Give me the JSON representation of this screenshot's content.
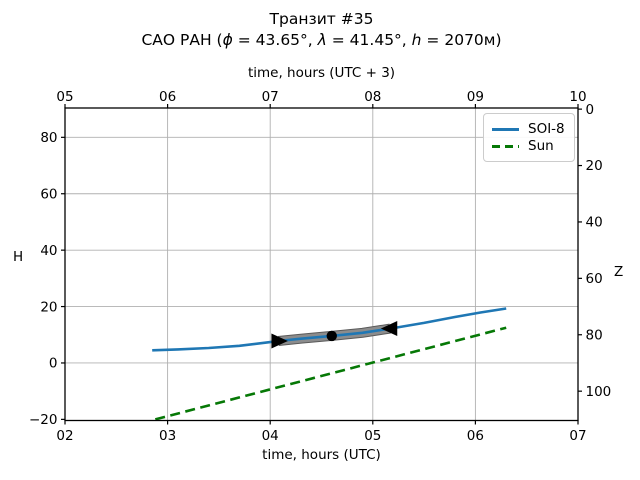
{
  "title": "Транзит #35",
  "subtitle": {
    "prefix": "САО РАН (",
    "phi_symbol": "ϕ",
    "phi_value": " = 43.65°, ",
    "lambda_symbol": "λ",
    "lambda_value": " = 41.45°, ",
    "h_symbol": "h",
    "h_value": " = 2070м)"
  },
  "chart_data": {
    "type": "line",
    "title": "Транзит #35",
    "subtitle": "САО РАН (ϕ = 43.65°, λ = 41.45°, h = 2070м)",
    "grid": true,
    "axes": {
      "x_bottom": {
        "label": "time, hours (UTC)",
        "min": 2,
        "max": 7,
        "ticks": [
          {
            "v": 2,
            "label": "02"
          },
          {
            "v": 3,
            "label": "03"
          },
          {
            "v": 4,
            "label": "04"
          },
          {
            "v": 5,
            "label": "05"
          },
          {
            "v": 6,
            "label": "06"
          },
          {
            "v": 7,
            "label": "07"
          }
        ]
      },
      "x_top": {
        "label": "time, hours (UTC + 3)",
        "min": 5,
        "max": 10,
        "ticks": [
          {
            "v": 2,
            "label": "05"
          },
          {
            "v": 3,
            "label": "06"
          },
          {
            "v": 4,
            "label": "07"
          },
          {
            "v": 5,
            "label": "08"
          },
          {
            "v": 6,
            "label": "09"
          },
          {
            "v": 7,
            "label": "10"
          }
        ]
      },
      "y_left": {
        "label": "H",
        "min": -20.4,
        "max": 90.4,
        "ticks": [
          {
            "v": -20,
            "label": "−20"
          },
          {
            "v": 0,
            "label": "0"
          },
          {
            "v": 20,
            "label": "20"
          },
          {
            "v": 40,
            "label": "40"
          },
          {
            "v": 60,
            "label": "60"
          },
          {
            "v": 80,
            "label": "80"
          }
        ]
      },
      "y_right": {
        "label": "Z",
        "relation": "Z = 90 − H",
        "ticks": [
          {
            "z": 0,
            "label": "0"
          },
          {
            "z": 20,
            "label": "20"
          },
          {
            "z": 40,
            "label": "40"
          },
          {
            "z": 60,
            "label": "60"
          },
          {
            "z": 80,
            "label": "80"
          },
          {
            "z": 100,
            "label": "100"
          }
        ]
      }
    },
    "series": [
      {
        "name": "SOI-8",
        "color": "#1f77b4",
        "style": "solid",
        "width": 2.6,
        "points": [
          [
            2.85,
            4.5
          ],
          [
            3.1,
            4.8
          ],
          [
            3.4,
            5.3
          ],
          [
            3.7,
            6.1
          ],
          [
            4.0,
            7.4
          ],
          [
            4.08,
            7.8
          ],
          [
            4.3,
            8.6
          ],
          [
            4.6,
            9.6
          ],
          [
            4.9,
            10.7
          ],
          [
            5.17,
            12.2
          ],
          [
            5.5,
            14.2
          ],
          [
            5.8,
            16.3
          ],
          [
            6.05,
            17.9
          ],
          [
            6.3,
            19.3
          ]
        ]
      },
      {
        "name": "Sun",
        "color": "#067806",
        "style": "dashed",
        "width": 2.6,
        "points": [
          [
            2.88,
            -20.0
          ],
          [
            6.3,
            12.5
          ]
        ]
      }
    ],
    "transit_band": {
      "color": "#8c8c8c",
      "edge_color": "#5a5a5a",
      "width": 8,
      "points": [
        [
          4.08,
          7.8
        ],
        [
          4.3,
          8.6
        ],
        [
          4.6,
          9.6
        ],
        [
          4.9,
          10.7
        ],
        [
          5.17,
          12.2
        ]
      ],
      "markers": [
        {
          "type": "triangle-right",
          "at": [
            4.08,
            7.8
          ]
        },
        {
          "type": "dot",
          "at": [
            4.6,
            9.6
          ]
        },
        {
          "type": "triangle-left",
          "at": [
            5.17,
            12.2
          ]
        }
      ],
      "marker_color": "#000000"
    },
    "legend": {
      "position": "upper right",
      "items": [
        {
          "label": "SOI-8",
          "color": "#1f77b4",
          "style": "solid"
        },
        {
          "label": "Sun",
          "color": "#067806",
          "style": "dashed"
        }
      ]
    },
    "colors": {
      "grid": "#b0b0b0",
      "spine": "#000000",
      "background": "#ffffff"
    }
  }
}
